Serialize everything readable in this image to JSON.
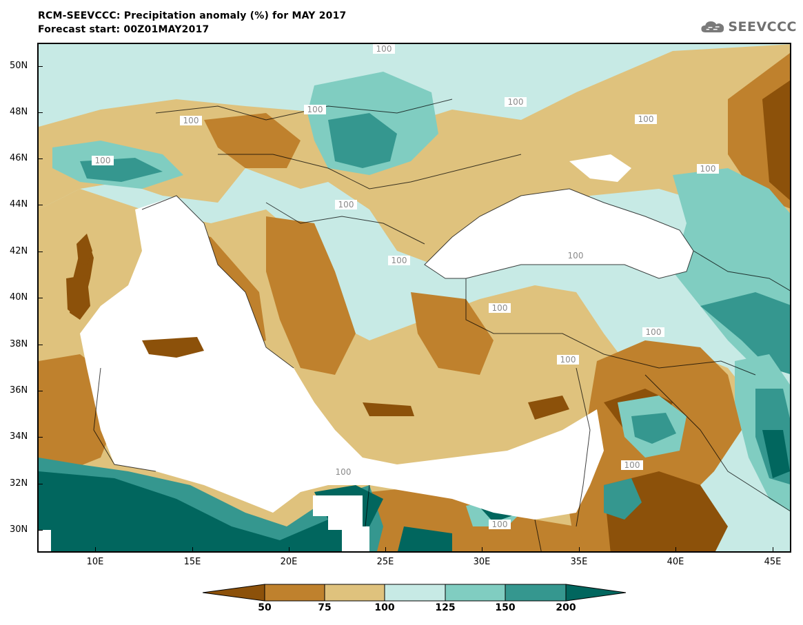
{
  "header": {
    "title_line1": "RCM-SEEVCCC: Precipitation anomaly (%) for MAY 2017",
    "title_line2": "Forecast start: 00Z01MAY2017"
  },
  "logo": {
    "text": "SEEVCCC",
    "icon": "cloud-icon",
    "color": "#707070"
  },
  "map": {
    "lat_labels": [
      "50N",
      "48N",
      "46N",
      "44N",
      "42N",
      "40N",
      "38N",
      "36N",
      "34N",
      "32N",
      "30N"
    ],
    "lon_labels": [
      "10E",
      "15E",
      "20E",
      "25E",
      "30E",
      "35E",
      "40E",
      "45E"
    ],
    "contour_label": "100",
    "extent": {
      "lon_min": 7,
      "lon_max": 46,
      "lat_min": 29,
      "lat_max": 51
    }
  },
  "legend": {
    "colors": [
      "#8c510a",
      "#bf812d",
      "#dfc27d",
      "#c7eae5",
      "#80cdc1",
      "#35978f",
      "#01665e"
    ],
    "tick_labels": [
      "50",
      "75",
      "100",
      "125",
      "150",
      "200"
    ]
  }
}
